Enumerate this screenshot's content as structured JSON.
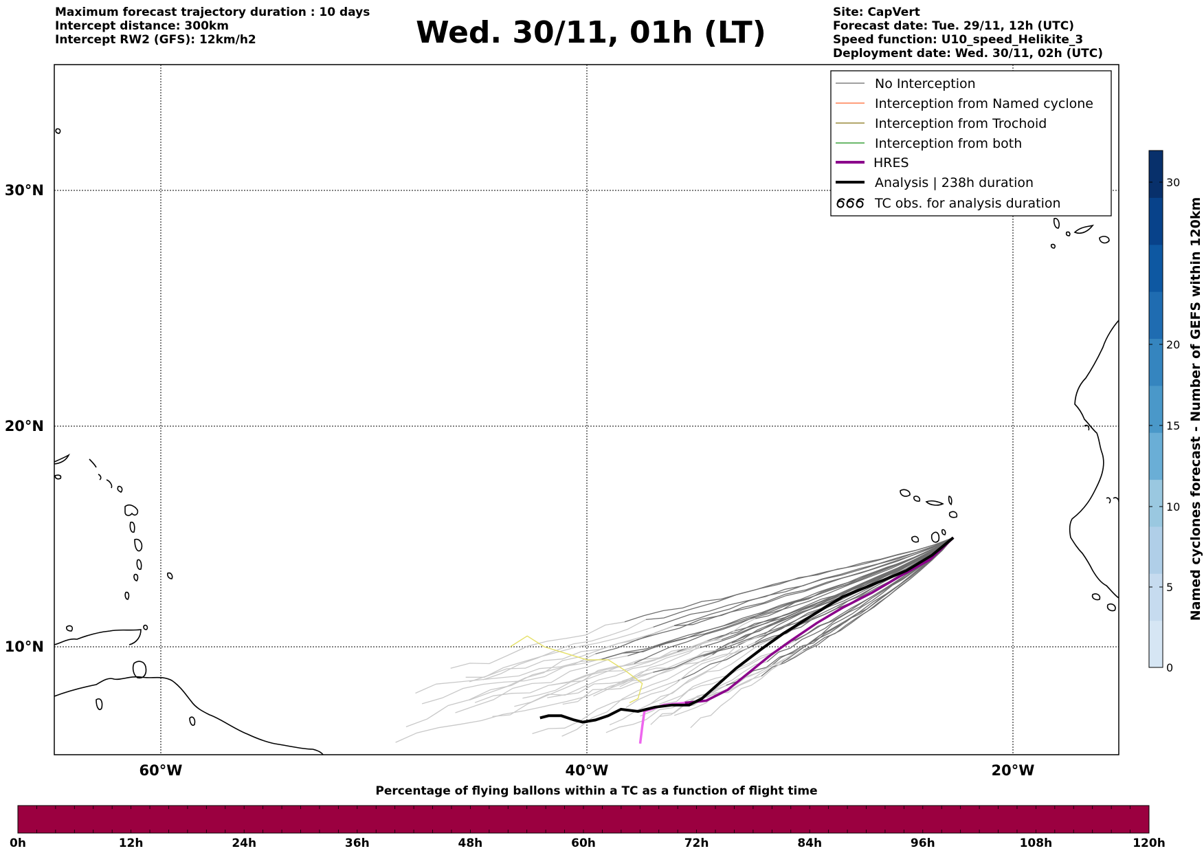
{
  "header_left": [
    "Maximum forecast trajectory duration : 10 days",
    "Intercept distance: 300km",
    "Intercept RW2 (GFS):  12km/h2"
  ],
  "title": "Wed. 30/11, 01h (LT)",
  "header_right": [
    "Site: CapVert",
    "Forecast date: Tue. 29/11, 12h (UTC)",
    "Speed function: U10_speed_Helikite_3",
    "Deployment date: Wed. 30/11, 02h (UTC)"
  ],
  "map": {
    "lon_range": [
      -65,
      -15
    ],
    "lat_range": [
      5.5,
      35
    ],
    "lat_ticks": [
      "30°N",
      "20°N",
      "10°N"
    ],
    "lon_ticks": [
      "60°W",
      "40°W",
      "20°W"
    ],
    "launch_site": {
      "lon": -22.8,
      "lat": 15
    }
  },
  "legend": [
    {
      "label": "No Interception",
      "color": "#808080",
      "icon": "line"
    },
    {
      "label": "Interception from Named cyclone",
      "color": "#ff7f50",
      "icon": "line"
    },
    {
      "label": "Interception from Trochoid",
      "color": "#9a8a3a",
      "icon": "line"
    },
    {
      "label": "Interception from both",
      "color": "#3aa03a",
      "icon": "line"
    },
    {
      "label": "HRES",
      "color": "#8b008b",
      "icon": "thick-line"
    },
    {
      "label": "Analysis | 238h duration",
      "color": "#000000",
      "icon": "thick-line"
    },
    {
      "label": "TC obs. for analysis duration",
      "color": "#000000",
      "icon": "cyclone-symbols"
    }
  ],
  "colorbar": {
    "label": "Named cyclones forecast - Number of GEFS within 120km",
    "ticks": [
      "0",
      "5",
      "10",
      "15",
      "20",
      "30"
    ],
    "colors": [
      "#d6e6f4",
      "#c6dbef",
      "#b0cfe8",
      "#9ac8e0",
      "#6aaed6",
      "#4a98c9",
      "#3585bf",
      "#1f6cb1",
      "#0e58a2",
      "#08428a",
      "#08306b"
    ]
  },
  "timeline": {
    "title": "Percentage of flying ballons within a TC as a function of flight time",
    "color": "#9b0040",
    "labels": [
      "0h",
      "12h",
      "24h",
      "36h",
      "48h",
      "60h",
      "72h",
      "84h",
      "96h",
      "108h",
      "120h"
    ]
  },
  "tracks": {
    "analysis": [
      [
        -42.2,
        6.7
      ],
      [
        -41.8,
        6.8
      ],
      [
        -41.2,
        6.8
      ],
      [
        -40.6,
        6.6
      ],
      [
        -40.2,
        6.5
      ],
      [
        -39.6,
        6.6
      ],
      [
        -39.0,
        6.8
      ],
      [
        -38.4,
        7.1
      ],
      [
        -37.6,
        7.0
      ],
      [
        -36.8,
        7.2
      ],
      [
        -36.0,
        7.3
      ],
      [
        -35.2,
        7.3
      ],
      [
        -34.6,
        7.6
      ],
      [
        -33.8,
        8.3
      ],
      [
        -33.0,
        9.0
      ],
      [
        -31.8,
        9.9
      ],
      [
        -30.8,
        10.6
      ],
      [
        -29.5,
        11.4
      ],
      [
        -28.0,
        12.3
      ],
      [
        -26.5,
        12.9
      ],
      [
        -25.0,
        13.5
      ],
      [
        -23.8,
        14.2
      ],
      [
        -22.8,
        15.0
      ]
    ],
    "hres": [
      [
        -37.5,
        5.5
      ],
      [
        -37.4,
        6.3
      ],
      [
        -37.3,
        7.0
      ],
      [
        -36.4,
        7.3
      ],
      [
        -35.4,
        7.4
      ],
      [
        -34.4,
        7.5
      ],
      [
        -33.4,
        8.0
      ],
      [
        -32.4,
        8.8
      ],
      [
        -31.4,
        9.6
      ],
      [
        -30.4,
        10.3
      ],
      [
        -29.2,
        11.1
      ],
      [
        -28.0,
        11.8
      ],
      [
        -26.6,
        12.5
      ],
      [
        -25.2,
        13.3
      ],
      [
        -23.9,
        14.0
      ],
      [
        -22.8,
        15.0
      ]
    ],
    "yellow": [
      [
        -43.6,
        10.0
      ],
      [
        -42.8,
        10.5
      ],
      [
        -42.0,
        10.0
      ],
      [
        -41.0,
        9.7
      ],
      [
        -40.0,
        9.4
      ],
      [
        -39.0,
        9.4
      ],
      [
        -38.2,
        8.9
      ],
      [
        -37.4,
        8.3
      ],
      [
        -37.6,
        7.6
      ],
      [
        -38.0,
        7.4
      ]
    ]
  }
}
